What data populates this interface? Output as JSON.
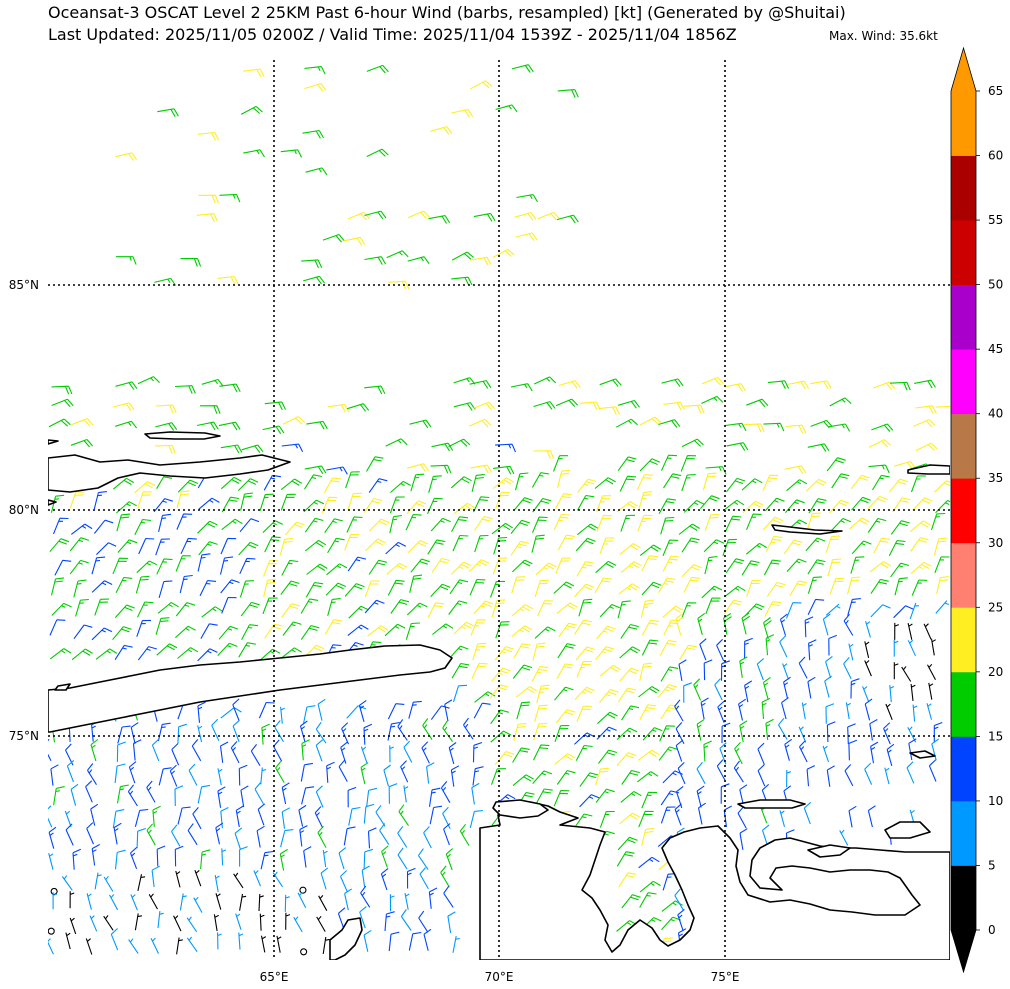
{
  "title": {
    "line1": "Oceansat-3 OSCAT Level 2 25KM Past 6-hour Wind (barbs, resampled) [kt] (Generated by @Shuitai)",
    "line2": "Last Updated: 2025/11/05 0200Z / Valid Time: 2025/11/04 1539Z - 2025/11/04 1856Z",
    "max_wind": "Max. Wind: 35.6kt"
  },
  "map": {
    "lat_labels": [
      "85°N",
      "80°N",
      "75°N"
    ],
    "lon_labels": [
      "65°E",
      "70°E",
      "75°E"
    ],
    "gridline_style": "dotted",
    "coastline_color": "#000000"
  },
  "colorbar": {
    "ticks": [
      "0",
      "5",
      "10",
      "15",
      "20",
      "25",
      "30",
      "35",
      "40",
      "45",
      "50",
      "55",
      "60",
      "65"
    ],
    "bins": [
      {
        "from": 0,
        "to": 5,
        "color": "#000000"
      },
      {
        "from": 5,
        "to": 10,
        "color": "#0099ff"
      },
      {
        "from": 10,
        "to": 15,
        "color": "#0044ff"
      },
      {
        "from": 15,
        "to": 20,
        "color": "#00cc00"
      },
      {
        "from": 20,
        "to": 25,
        "color": "#ffee22"
      },
      {
        "from": 25,
        "to": 30,
        "color": "#ff8070"
      },
      {
        "from": 30,
        "to": 35,
        "color": "#ff0000"
      },
      {
        "from": 35,
        "to": 40,
        "color": "#b87848"
      },
      {
        "from": 40,
        "to": 45,
        "color": "#ff00ff"
      },
      {
        "from": 45,
        "to": 50,
        "color": "#aa00cc"
      },
      {
        "from": 50,
        "to": 55,
        "color": "#cc0000"
      },
      {
        "from": 55,
        "to": 60,
        "color": "#aa0000"
      },
      {
        "from": 60,
        "to": 65,
        "color": "#ff9900"
      }
    ],
    "extend_low_color": "#000000",
    "extend_high_color": "#ff9900"
  }
}
